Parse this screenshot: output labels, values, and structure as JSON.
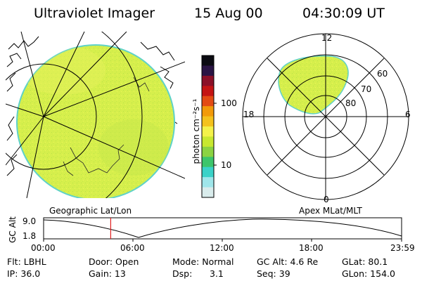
{
  "header": {
    "instrument": "Ultraviolet Imager",
    "date": "15 Aug 00",
    "time": "04:30:09 UT"
  },
  "colorbar": {
    "unit_label": "photon cm⁻²s⁻¹",
    "tick_100": "100",
    "tick_10": "10",
    "colors": [
      "#d9ecec",
      "#9fe6ea",
      "#3ad2c8",
      "#3cc56b",
      "#8bd342",
      "#c8e830",
      "#f4f24a",
      "#f4c21d",
      "#f29a0a",
      "#e34b14",
      "#c41414",
      "#8b1028",
      "#2a1444",
      "#0b0b12"
    ]
  },
  "geo_panel": {
    "label": "Geographic Lat/Lon",
    "aurora_color": "#d6ef4c"
  },
  "polar_panel": {
    "label": "Apex MLat/MLT",
    "mlt_labels": {
      "top": "12",
      "bottom": "0",
      "left": "18",
      "right": "6"
    },
    "lat_labels": {
      "l60": "60",
      "l70": "70",
      "l80": "80"
    }
  },
  "orbit_plot": {
    "ylabel": "GC Alt",
    "y_max": "9.0",
    "y_min": "1.8",
    "x_ticks": [
      "00:00",
      "06:00",
      "12:00",
      "18:00",
      "23:59"
    ],
    "marker_time_hours": 4.5,
    "marker_color": "#e02020"
  },
  "info": {
    "flt": "Flt: LBHL",
    "door": "Door: Open",
    "mode": "Mode: Normal",
    "gc_alt": "GC Alt: 4.6 Re",
    "glat": "GLat:  80.1",
    "ip": "IP: 36.0",
    "gain": "Gain: 13",
    "dsp_label": "Dsp:",
    "dsp_value": "3.1",
    "seq": "Seq: 39",
    "glon": "GLon: 154.0"
  }
}
